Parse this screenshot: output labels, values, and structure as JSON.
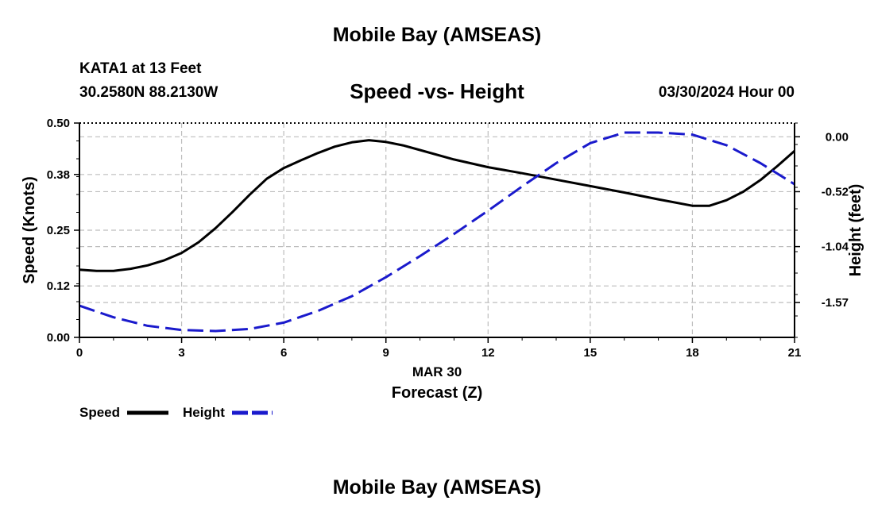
{
  "header": {
    "title": "Mobile Bay (AMSEAS)",
    "station": "KATA1 at 13 Feet",
    "coords": "30.2580N  88.2130W",
    "date": "03/30/2024 Hour 00"
  },
  "footer": {
    "title": "Mobile Bay (AMSEAS)"
  },
  "chart_data": {
    "type": "line",
    "title": "Speed -vs- Height",
    "xlabel": "Forecast (Z)",
    "xsublabel": "MAR 30",
    "ylabel": "Speed (Knots)",
    "y2label": "Height (feet)",
    "xlim": [
      0,
      21
    ],
    "ylim": [
      0,
      0.5
    ],
    "y2lim": [
      -1.9,
      0.13
    ],
    "x_ticks": [
      "0",
      "3",
      "6",
      "9",
      "12",
      "15",
      "18",
      "21"
    ],
    "y_ticks": [
      "0.00",
      "0.12",
      "0.25",
      "0.38",
      "0.50"
    ],
    "y2_ticks": [
      "0.00",
      "-0.52",
      "-1.04",
      "-1.57"
    ],
    "grid": true,
    "legend_position": "bottom-left",
    "series": [
      {
        "name": "Speed",
        "axis": "left",
        "color": "#000000",
        "style": "solid",
        "x": [
          0,
          0.5,
          1,
          1.5,
          2,
          2.5,
          3,
          3.5,
          4,
          4.5,
          5,
          5.5,
          6,
          6.5,
          7,
          7.5,
          8,
          8.5,
          9,
          9.5,
          10,
          11,
          12,
          13,
          14,
          15,
          16,
          17,
          18,
          18.5,
          19,
          19.5,
          20,
          20.5,
          21
        ],
        "values": [
          0.158,
          0.155,
          0.155,
          0.16,
          0.168,
          0.18,
          0.197,
          0.222,
          0.255,
          0.293,
          0.333,
          0.37,
          0.395,
          0.413,
          0.43,
          0.445,
          0.455,
          0.46,
          0.456,
          0.448,
          0.437,
          0.415,
          0.397,
          0.383,
          0.368,
          0.353,
          0.338,
          0.322,
          0.307,
          0.307,
          0.32,
          0.34,
          0.367,
          0.4,
          0.435
        ]
      },
      {
        "name": "Height",
        "axis": "right",
        "color": "#1a1acc",
        "style": "dashed",
        "x": [
          0,
          1,
          2,
          3,
          4,
          5,
          6,
          7,
          8,
          9,
          10,
          11,
          12,
          13,
          14,
          15,
          16,
          17,
          18,
          19,
          20,
          21
        ],
        "values": [
          -1.6,
          -1.71,
          -1.79,
          -1.83,
          -1.84,
          -1.82,
          -1.76,
          -1.65,
          -1.51,
          -1.33,
          -1.13,
          -0.92,
          -0.7,
          -0.47,
          -0.25,
          -0.06,
          0.04,
          0.04,
          0.02,
          -0.08,
          -0.25,
          -0.45
        ]
      }
    ]
  }
}
